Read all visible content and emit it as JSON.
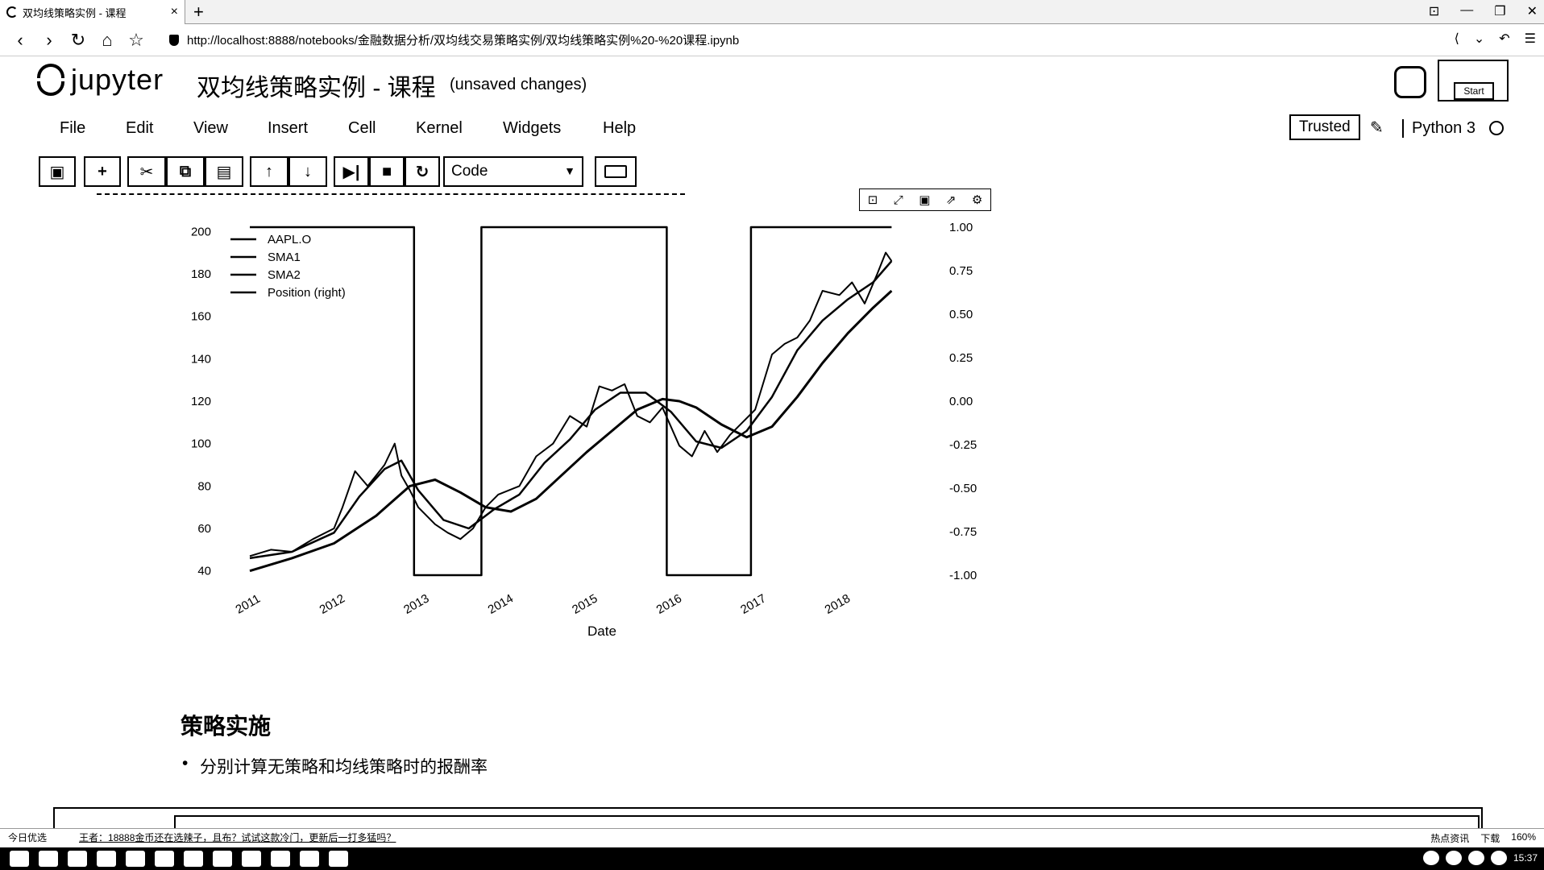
{
  "browser": {
    "tab_title": "双均线策略实例 - 课程",
    "tab_close": "×",
    "new_tab": "+",
    "url": "http://localhost:8888/notebooks/金融数据分析/双均线交易策略实例/双均线策略实例%20-%20课程.ipynb"
  },
  "jupyter": {
    "logo_text": "jupyter",
    "notebook_title": "双均线策略实例 - 课程",
    "save_status": "(unsaved changes)",
    "start_label": "Start",
    "trusted_label": "Trusted",
    "kernel_name": "Python 3",
    "menu": [
      "File",
      "Edit",
      "View",
      "Insert",
      "Cell",
      "Kernel",
      "Widgets",
      "Help"
    ],
    "cell_type": "Code"
  },
  "chart_data": {
    "type": "line",
    "xlabel": "Date",
    "x_ticks": [
      "2011",
      "2012",
      "2013",
      "2014",
      "2015",
      "2016",
      "2017",
      "2018"
    ],
    "y_left_ticks": [
      "200",
      "180",
      "160",
      "140",
      "120",
      "100",
      "80",
      "60",
      "40"
    ],
    "y_right_ticks": [
      "1.00",
      "0.75",
      "0.50",
      "0.25",
      "0.00",
      "-0.25",
      "-0.50",
      "-0.75",
      "-1.00"
    ],
    "ylim_left": [
      38,
      202
    ],
    "ylim_right": [
      -1.0,
      1.0
    ],
    "xlim": [
      2011.0,
      2018.75
    ],
    "legend": [
      "AAPL.O",
      "SMA1",
      "SMA2",
      "Position (right)"
    ],
    "legend_position": "upper-left",
    "series": [
      {
        "name": "AAPL.O",
        "x": [
          2011.0,
          2011.25,
          2011.5,
          2011.75,
          2012.0,
          2012.1,
          2012.25,
          2012.4,
          2012.5,
          2012.6,
          2012.72,
          2012.8,
          2012.9,
          2013.0,
          2013.2,
          2013.35,
          2013.5,
          2013.65,
          2013.8,
          2013.95,
          2014.2,
          2014.4,
          2014.6,
          2014.8,
          2015.0,
          2015.15,
          2015.3,
          2015.45,
          2015.6,
          2015.75,
          2015.9,
          2016.1,
          2016.25,
          2016.4,
          2016.55,
          2016.7,
          2016.85,
          2017.0,
          2017.2,
          2017.35,
          2017.5,
          2017.65,
          2017.8,
          2018.0,
          2018.15,
          2018.3,
          2018.45,
          2018.55,
          2018.62
        ],
        "values": [
          47,
          50,
          49,
          55,
          60,
          70,
          87,
          80,
          85,
          90,
          100,
          85,
          78,
          70,
          62,
          58,
          55,
          60,
          70,
          76,
          80,
          94,
          100,
          113,
          108,
          127,
          125,
          128,
          113,
          110,
          117,
          99,
          94,
          106,
          96,
          104,
          110,
          116,
          142,
          147,
          150,
          158,
          172,
          170,
          176,
          166,
          180,
          190,
          186
        ]
      },
      {
        "name": "SMA1",
        "x": [
          2011.0,
          2011.5,
          2012.0,
          2012.3,
          2012.6,
          2012.8,
          2013.0,
          2013.3,
          2013.6,
          2013.9,
          2014.2,
          2014.5,
          2014.8,
          2015.1,
          2015.4,
          2015.7,
          2016.0,
          2016.3,
          2016.6,
          2016.9,
          2017.2,
          2017.5,
          2017.8,
          2018.1,
          2018.4,
          2018.62
        ],
        "values": [
          46,
          49,
          58,
          75,
          88,
          92,
          78,
          64,
          60,
          69,
          76,
          91,
          102,
          116,
          124,
          124,
          115,
          101,
          98,
          106,
          122,
          144,
          158,
          168,
          176,
          186
        ]
      },
      {
        "name": "SMA2",
        "x": [
          2011.0,
          2011.5,
          2012.0,
          2012.5,
          2012.9,
          2013.2,
          2013.5,
          2013.8,
          2014.1,
          2014.4,
          2014.7,
          2015.0,
          2015.3,
          2015.6,
          2015.9,
          2016.1,
          2016.3,
          2016.6,
          2016.9,
          2017.2,
          2017.5,
          2017.8,
          2018.1,
          2018.4,
          2018.62
        ],
        "values": [
          40,
          46,
          53,
          66,
          80,
          83,
          77,
          70,
          68,
          74,
          85,
          96,
          106,
          116,
          121,
          120,
          117,
          109,
          103,
          108,
          122,
          138,
          152,
          164,
          172
        ]
      },
      {
        "name": "Position (right)",
        "axis": "right",
        "x": [
          2011.0,
          2012.95,
          2012.95,
          2013.75,
          2013.75,
          2015.95,
          2015.95,
          2016.95,
          2016.95,
          2018.62
        ],
        "values": [
          1,
          1,
          -1,
          -1,
          1,
          1,
          -1,
          -1,
          1,
          1
        ]
      }
    ]
  },
  "markdown": {
    "heading": "策略实施",
    "bullet": "分别计算无策略和均线策略时的报酬率"
  },
  "statusbar": {
    "left_item": "今日优选",
    "news": "王者：18888金币还在选辣子，且布？试试这款冷门，更新后一打多猛吗？",
    "hot": "热点资讯",
    "download": "下载",
    "zoom": "160%",
    "time": "15:37"
  }
}
